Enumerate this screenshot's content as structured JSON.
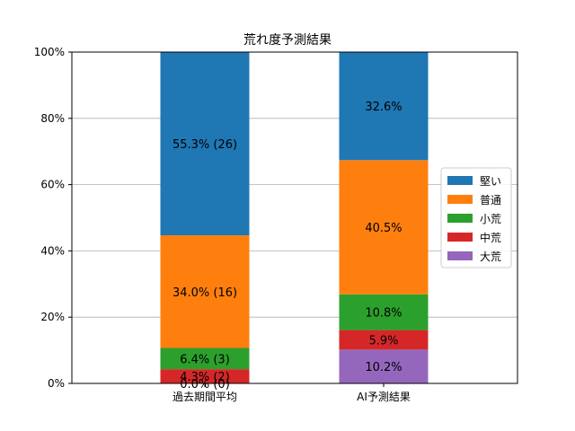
{
  "chart_data": {
    "type": "bar",
    "stacked": true,
    "title": "荒れ度予測結果",
    "xlabel": "",
    "ylabel": "",
    "ylim": [
      0,
      100
    ],
    "yticks": [
      "0%",
      "20%",
      "40%",
      "60%",
      "80%",
      "100%"
    ],
    "grid": "y",
    "legend_position": "right",
    "categories": [
      "過去期間平均",
      "AI予測結果"
    ],
    "series": [
      {
        "name": "大荒",
        "color": "#9467bd",
        "values": [
          0.0,
          10.2
        ],
        "labels": [
          "0.0% (0)",
          "10.2%"
        ]
      },
      {
        "name": "中荒",
        "color": "#d62728",
        "values": [
          4.3,
          5.9
        ],
        "labels": [
          "4.3% (2)",
          "5.9%"
        ]
      },
      {
        "name": "小荒",
        "color": "#2ca02c",
        "values": [
          6.4,
          10.8
        ],
        "labels": [
          "6.4% (3)",
          "10.8%"
        ]
      },
      {
        "name": "普通",
        "color": "#ff7f0e",
        "values": [
          34.0,
          40.5
        ],
        "labels": [
          "34.0% (16)",
          "40.5%"
        ]
      },
      {
        "name": "堅い",
        "color": "#1f77b4",
        "values": [
          55.3,
          32.6
        ],
        "labels": [
          "55.3% (26)",
          "32.6%"
        ]
      }
    ],
    "legend_order": [
      "堅い",
      "普通",
      "小荒",
      "中荒",
      "大荒"
    ]
  }
}
